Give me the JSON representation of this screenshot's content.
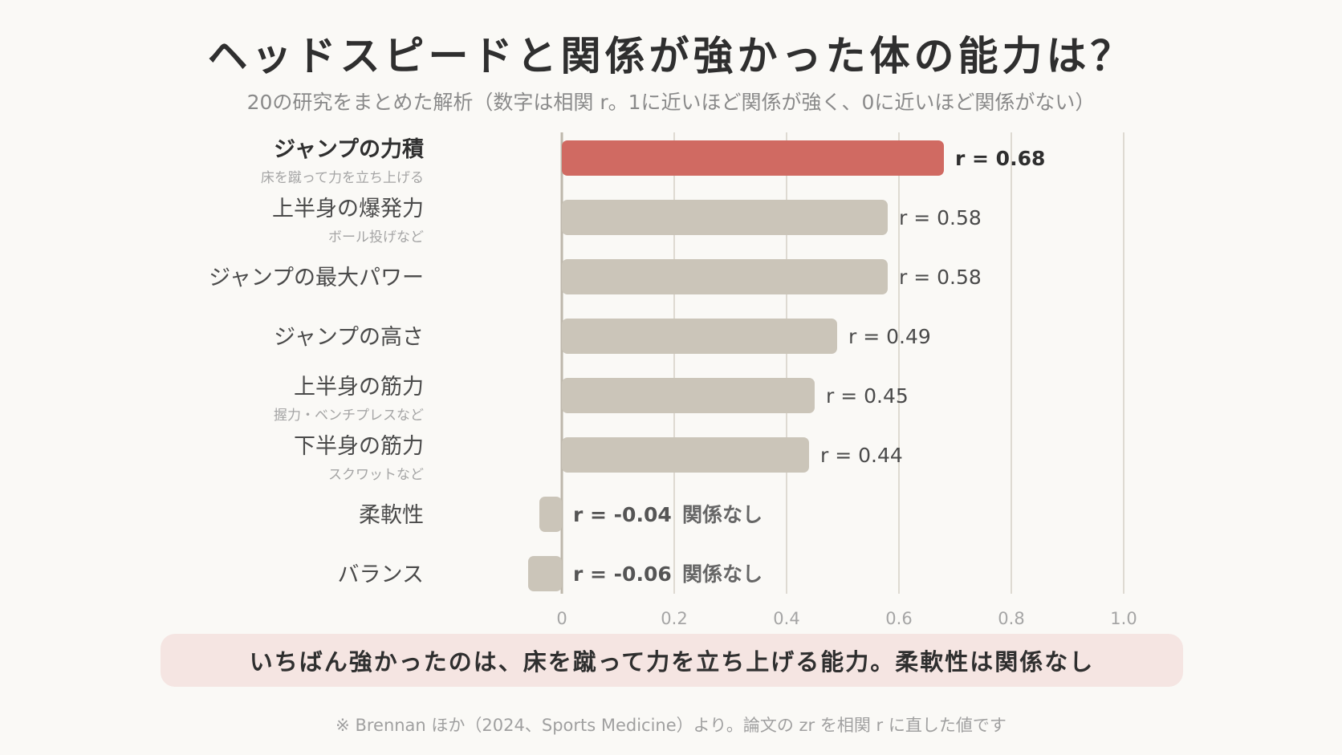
{
  "chart_data": {
    "type": "bar",
    "orientation": "horizontal",
    "title": "ヘッドスピードと関係が強かった体の能力は？",
    "subtitle": "20の研究をまとめた解析（数字は相関 r。1に近いほど関係が強く、0に近いほど関係がない）",
    "categories": [
      {
        "label": "ジャンプの力積",
        "sublabel": "床を蹴って力を立ち上げる",
        "value": 0.68,
        "value_label": "r = 0.68",
        "note": "",
        "highlight": true
      },
      {
        "label": "上半身の爆発力",
        "sublabel": "ボール投げなど",
        "value": 0.58,
        "value_label": "r = 0.58",
        "note": "",
        "highlight": false
      },
      {
        "label": "ジャンプの最大パワー",
        "sublabel": "",
        "value": 0.58,
        "value_label": "r = 0.58",
        "note": "",
        "highlight": false
      },
      {
        "label": "ジャンプの高さ",
        "sublabel": "",
        "value": 0.49,
        "value_label": "r = 0.49",
        "note": "",
        "highlight": false
      },
      {
        "label": "上半身の筋力",
        "sublabel": "握力・ベンチプレスなど",
        "value": 0.45,
        "value_label": "r = 0.45",
        "note": "",
        "highlight": false
      },
      {
        "label": "下半身の筋力",
        "sublabel": "スクワットなど",
        "value": 0.44,
        "value_label": "r = 0.44",
        "note": "",
        "highlight": false
      },
      {
        "label": "柔軟性",
        "sublabel": "",
        "value": -0.04,
        "value_label": "r = -0.04",
        "note": "関係なし",
        "highlight": false
      },
      {
        "label": "バランス",
        "sublabel": "",
        "value": -0.06,
        "value_label": "r = -0.06",
        "note": "関係なし",
        "highlight": false
      }
    ],
    "xlim": [
      0,
      1.0
    ],
    "x_ticks": [
      "0",
      "0.2",
      "0.4",
      "0.6",
      "0.8",
      "1.0"
    ],
    "x_tick_values": [
      0,
      0.2,
      0.4,
      0.6,
      0.8,
      1.0
    ],
    "grid": true,
    "colors": {
      "highlight": "#d06a62",
      "default": "#cbc5b9",
      "grid": "#dedad2",
      "axis": "#bdb7ab"
    }
  },
  "callout": "いちばん強かったのは、床を蹴って力を立ち上げる能力。柔軟性は関係なし",
  "footnote": "※ Brennan ほか（2024、Sports Medicine）より。論文の zr を相関 r に直した値です"
}
